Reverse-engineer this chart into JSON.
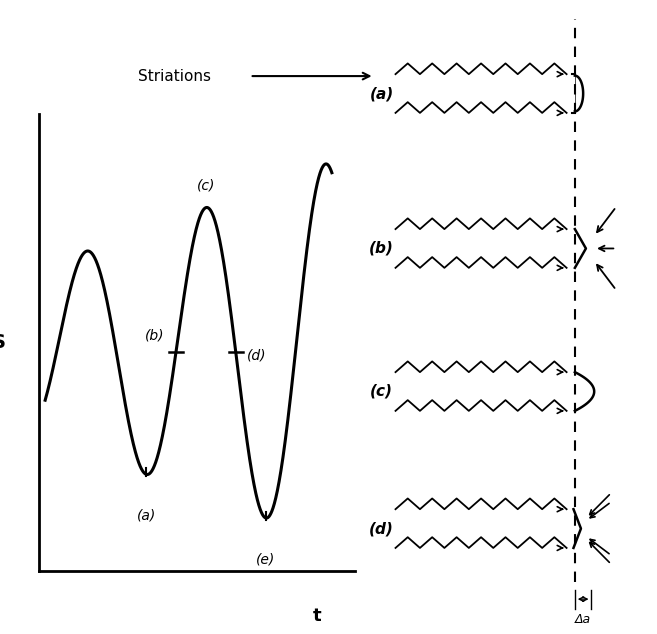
{
  "bg_color": "#ffffff",
  "left_panel": {
    "xlabel": "t",
    "ylabel": "S",
    "wave_color": "#000000"
  },
  "right_panel": {
    "labels": [
      "(a)",
      "(b)",
      "(c)",
      "(d)"
    ],
    "striations_text": "Striations",
    "delta_a_text": "Δa"
  }
}
